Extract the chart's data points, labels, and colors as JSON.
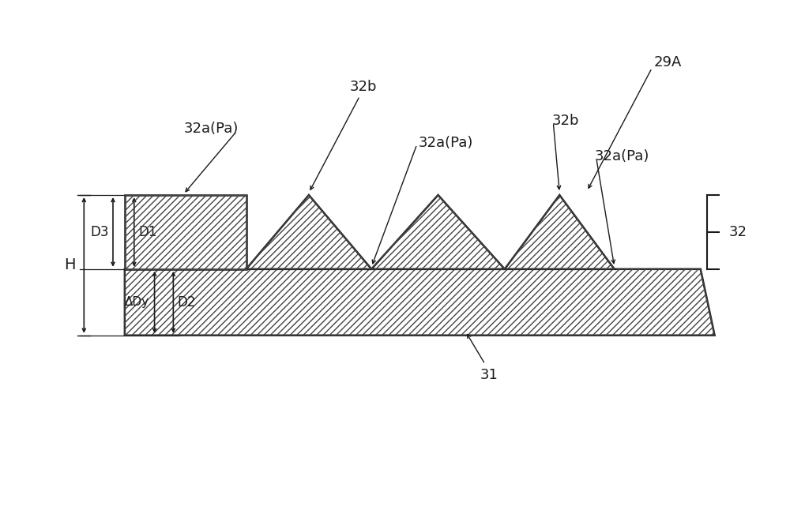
{
  "bg_color": "#ffffff",
  "line_color": "#1a1a1a",
  "hatch_color": "#444444",
  "fig_width": 10.0,
  "fig_height": 6.51,
  "dpi": 100,
  "label_29A": "29A",
  "label_32": "32",
  "label_31": "31",
  "label_D1": "D1",
  "label_D2": "D2",
  "label_D3": "D3",
  "label_DeltaDy": "ΔDy",
  "label_H": "H",
  "label_32b_1": "32b",
  "label_32b_2": "32b",
  "label_32a_1": "32a(Pa)",
  "label_32a_2": "32a(Pa)",
  "label_32a_3": "32a(Pa)"
}
